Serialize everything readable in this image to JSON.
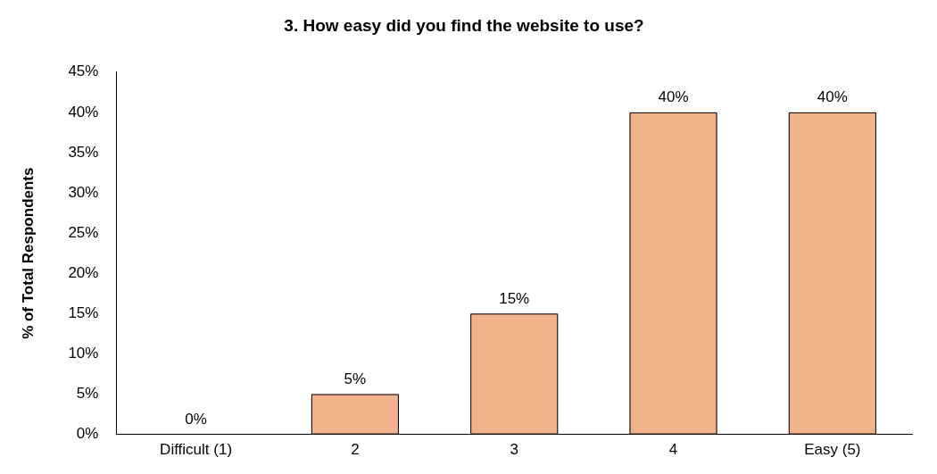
{
  "chart_data": {
    "type": "bar",
    "title": "3. How easy did you find the website to use?",
    "ylabel": "% of Total Respondents",
    "categories": [
      "Difficult (1)",
      "2",
      "3",
      "4",
      "Easy (5)"
    ],
    "values": [
      0,
      5,
      15,
      40,
      40
    ],
    "color": "#f2b28a",
    "value_labels": [
      "0%",
      "5%",
      "15%",
      "40%",
      "40%"
    ],
    "ylim": [
      0,
      45
    ],
    "yticks": [
      {
        "value": 0,
        "label": "0%"
      },
      {
        "value": 5,
        "label": "5%"
      },
      {
        "value": 10,
        "label": "10%"
      },
      {
        "value": 15,
        "label": "15%"
      },
      {
        "value": 20,
        "label": "20%"
      },
      {
        "value": 25,
        "label": "25%"
      },
      {
        "value": 30,
        "label": "30%"
      },
      {
        "value": 35,
        "label": "35%"
      },
      {
        "value": 40,
        "label": "40%"
      },
      {
        "value": 45,
        "label": "45%"
      }
    ],
    "grid": false,
    "legend": false
  }
}
